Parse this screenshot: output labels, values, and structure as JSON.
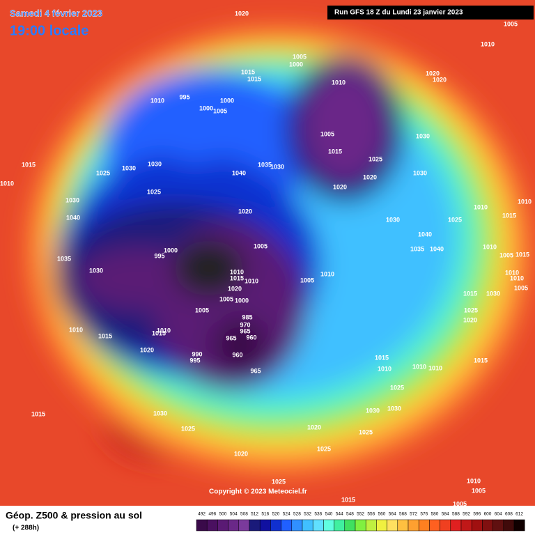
{
  "header": {
    "title": "Samedi 4 février 2023",
    "time": "19:00 locale",
    "run": "Run GFS 18 Z du Lundi 23 janvier 2023"
  },
  "map": {
    "copyright": "Copyright © 2023 Meteociel.fr",
    "isobar_labels": [
      1020,
      1005,
      1010,
      1005,
      1000,
      1015,
      1015,
      1010,
      1020,
      1020,
      1010,
      995,
      1000,
      1000,
      1005,
      1005,
      1030,
      1015,
      1025,
      1015,
      1025,
      1030,
      1030,
      1040,
      1035,
      1030,
      1030,
      1010,
      1025,
      1020,
      1020,
      1030,
      1020,
      1030,
      1040,
      1025,
      1010,
      1015,
      1010,
      1040,
      1005,
      1035,
      1040,
      1000,
      995,
      1035,
      1030,
      1010,
      1015,
      1010,
      1005,
      1010,
      1020,
      1005,
      1000,
      1005,
      985,
      970,
      965,
      960,
      965,
      960,
      965,
      990,
      995,
      1010,
      1015,
      1010,
      1015,
      1020,
      1015,
      1010,
      1010,
      1010,
      1015,
      1025,
      1030,
      1030,
      1025,
      1020,
      1025,
      1020,
      1015,
      1030,
      1025,
      1025,
      1015,
      1010,
      1005,
      1005,
      1010,
      1015,
      1030,
      1020,
      1025,
      1010,
      1005,
      1015,
      1010,
      1005
    ]
  },
  "footer": {
    "title": "Géop. Z500 & pression au sol",
    "lead": "(+ 288h)",
    "scale": {
      "labels": [
        492,
        496,
        500,
        504,
        508,
        512,
        516,
        520,
        524,
        528,
        532,
        536,
        540,
        544,
        548,
        552,
        556,
        560,
        564,
        568,
        572,
        576,
        580,
        584,
        588,
        592,
        596,
        600,
        604,
        608,
        612
      ],
      "colors": [
        "#3a0a4a",
        "#4a1060",
        "#5a1a74",
        "#6a2888",
        "#7a3a9c",
        "#1a1a7a",
        "#1010a0",
        "#1030d0",
        "#2060ff",
        "#3090ff",
        "#40c0ff",
        "#60e0ff",
        "#60ffe0",
        "#40f0a0",
        "#40e060",
        "#80f040",
        "#c0f040",
        "#f0f040",
        "#ffe060",
        "#ffc040",
        "#ffa030",
        "#ff8020",
        "#ff6020",
        "#f04020",
        "#e02020",
        "#c01818",
        "#a01010",
        "#801010",
        "#601010",
        "#400a0a",
        "#100000"
      ]
    }
  }
}
